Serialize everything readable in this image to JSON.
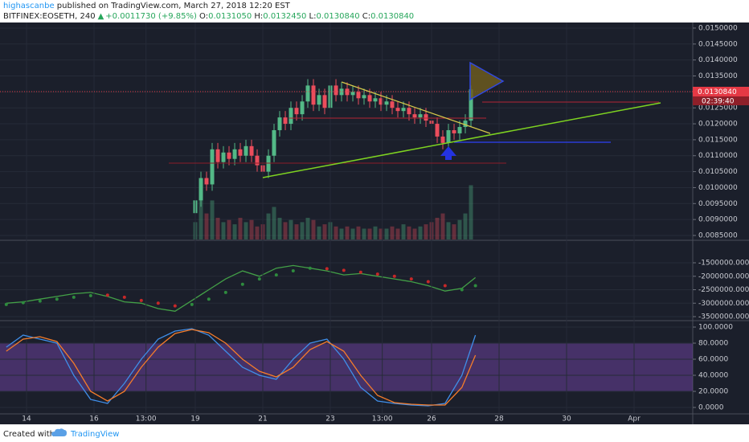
{
  "header": {
    "author": "highascanbe",
    "published": " published on TradingView.com, March 27, 2018 12:20 EST",
    "symbol": "BITFINEX:EOSETH, 240",
    "change": "+0.0011730 (+9.85%)",
    "open_label": " O:",
    "open": "0.0131050",
    "high_label": " H:",
    "high": "0.0132450",
    "low_label": " L:",
    "low": "0.0130840",
    "close_label": " C:",
    "close": "0.0130840"
  },
  "price_label": "0.0130840",
  "countdown": "02:39:40",
  "footer": {
    "created": "Created with",
    "brand": "TradingView"
  },
  "chart_data": [
    {
      "type": "candlestick",
      "up_color": "#53b987",
      "down_color": "#eb4d5c",
      "x": [
        19,
        19.167,
        19.333,
        19.5,
        19.667,
        19.833,
        20,
        20.167,
        20.333,
        20.5,
        20.667,
        20.833,
        21,
        21.167,
        21.333,
        21.5,
        21.667,
        21.833,
        22,
        22.167,
        22.333,
        22.5,
        22.667,
        22.833,
        23,
        23.167,
        23.333,
        23.5,
        23.667,
        23.833,
        24,
        24.167,
        24.333,
        24.5,
        24.667,
        24.833,
        25,
        25.167,
        25.333,
        25.5,
        25.667,
        25.833,
        26,
        26.167,
        26.333,
        26.5,
        26.667,
        26.833,
        27,
        27.167
      ],
      "open": [
        0.0092,
        0.0096,
        0.0103,
        0.0101,
        0.0112,
        0.0108,
        0.0111,
        0.0109,
        0.0112,
        0.011,
        0.0113,
        0.011,
        0.0107,
        0.0105,
        0.011,
        0.0118,
        0.0122,
        0.012,
        0.0125,
        0.0123,
        0.0127,
        0.0132,
        0.0126,
        0.0129,
        0.0125,
        0.0132,
        0.0129,
        0.0131,
        0.0129,
        0.013,
        0.0128,
        0.0129,
        0.0127,
        0.0128,
        0.0126,
        0.0127,
        0.0125,
        0.0124,
        0.0125,
        0.0123,
        0.0122,
        0.0123,
        0.0121,
        0.012,
        0.0116,
        0.0114,
        0.0118,
        0.0117,
        0.0119,
        0.0121
      ],
      "high": [
        0.0098,
        0.0105,
        0.0105,
        0.0114,
        0.0114,
        0.0113,
        0.0113,
        0.0114,
        0.0114,
        0.0115,
        0.0115,
        0.0112,
        0.0109,
        0.0112,
        0.012,
        0.0124,
        0.0124,
        0.0127,
        0.0127,
        0.0129,
        0.0134,
        0.0134,
        0.0131,
        0.0131,
        0.0134,
        0.0134,
        0.0133,
        0.0133,
        0.0132,
        0.0132,
        0.0131,
        0.0131,
        0.013,
        0.013,
        0.0129,
        0.0129,
        0.0127,
        0.0127,
        0.0127,
        0.0125,
        0.0125,
        0.0125,
        0.0123,
        0.0122,
        0.0118,
        0.012,
        0.012,
        0.0121,
        0.0123,
        0.0132
      ],
      "low": [
        0.009,
        0.0094,
        0.0099,
        0.0099,
        0.0106,
        0.0106,
        0.0107,
        0.0107,
        0.0108,
        0.0108,
        0.0108,
        0.0105,
        0.0103,
        0.0103,
        0.0108,
        0.0116,
        0.0118,
        0.0118,
        0.0121,
        0.0121,
        0.0125,
        0.0124,
        0.0124,
        0.0123,
        0.0123,
        0.0127,
        0.0127,
        0.0127,
        0.0127,
        0.0126,
        0.0126,
        0.0125,
        0.0125,
        0.0124,
        0.0124,
        0.0123,
        0.0122,
        0.0122,
        0.0121,
        0.012,
        0.012,
        0.0119,
        0.0118,
        0.0114,
        0.0112,
        0.0112,
        0.0115,
        0.0115,
        0.0117,
        0.0119
      ],
      "close": [
        0.0096,
        0.0103,
        0.0101,
        0.0112,
        0.0108,
        0.0111,
        0.0109,
        0.0112,
        0.011,
        0.0113,
        0.011,
        0.0107,
        0.0105,
        0.011,
        0.0118,
        0.0122,
        0.012,
        0.0125,
        0.0123,
        0.0127,
        0.0132,
        0.0126,
        0.0129,
        0.0125,
        0.0132,
        0.0129,
        0.0131,
        0.0129,
        0.013,
        0.0128,
        0.0129,
        0.0127,
        0.0128,
        0.0126,
        0.0127,
        0.0125,
        0.0124,
        0.0125,
        0.0123,
        0.0122,
        0.0123,
        0.0121,
        0.012,
        0.0116,
        0.0114,
        0.0118,
        0.0117,
        0.0119,
        0.0121,
        0.01308
      ],
      "xlim": [
        13.214,
        33.738
      ],
      "ylim": [
        0.008374,
        0.015175
      ],
      "yticks": [
        {
          "value": 0.0085,
          "label": "0.0085000"
        },
        {
          "value": 0.009,
          "label": "0.0090000"
        },
        {
          "value": 0.0095,
          "label": "0.0095000"
        },
        {
          "value": 0.01,
          "label": "0.0100000"
        },
        {
          "value": 0.0105,
          "label": "0.0105000"
        },
        {
          "value": 0.011,
          "label": "0.0110000"
        },
        {
          "value": 0.0115,
          "label": "0.0115000"
        },
        {
          "value": 0.012,
          "label": "0.0120000"
        },
        {
          "value": 0.0125,
          "label": "0.0125000"
        },
        {
          "value": 0.013,
          "label": "0.0130000"
        },
        {
          "value": 0.0135,
          "label": "0.0135000"
        },
        {
          "value": 0.014,
          "label": "0.0140000"
        },
        {
          "value": 0.0145,
          "label": "0.0145000"
        },
        {
          "value": 0.015,
          "label": "0.0150000"
        }
      ],
      "grid": true
    },
    {
      "type": "volume",
      "up_color": "#53b987",
      "down_color": "#eb4d5c",
      "x": [
        19,
        19.167,
        19.333,
        19.5,
        19.667,
        19.833,
        20,
        20.167,
        20.333,
        20.5,
        20.667,
        20.833,
        21,
        21.167,
        21.333,
        21.5,
        21.667,
        21.833,
        22,
        22.167,
        22.333,
        22.5,
        22.667,
        22.833,
        23,
        23.167,
        23.333,
        23.5,
        23.667,
        23.833,
        24,
        24.167,
        24.333,
        24.5,
        24.667,
        24.833,
        25,
        25.167,
        25.333,
        25.5,
        25.667,
        25.833,
        26,
        26.167,
        26.333,
        26.5,
        26.667,
        26.833,
        27,
        27.167
      ],
      "values": [
        8,
        22,
        12,
        18,
        10,
        8,
        9,
        7,
        10,
        8,
        9,
        6,
        7,
        12,
        15,
        10,
        8,
        9,
        7,
        8,
        10,
        9,
        6,
        7,
        8,
        6,
        5,
        6,
        5,
        6,
        5,
        5,
        6,
        5,
        5,
        6,
        5,
        7,
        6,
        5,
        6,
        7,
        8,
        10,
        12,
        8,
        7,
        9,
        12,
        25
      ],
      "xlim": [
        13.214,
        33.738
      ],
      "ylim": [
        0,
        100
      ]
    },
    {
      "type": "line",
      "up_color": "#2e8b3e",
      "down_color": "#c62828",
      "x": [
        13.4,
        13.9,
        14.4,
        14.9,
        15.4,
        15.9,
        16.4,
        16.9,
        17.4,
        17.9,
        18.4,
        18.9,
        19.4,
        19.9,
        20.4,
        20.9,
        21.4,
        21.9,
        22.4,
        22.9,
        23.4,
        23.9,
        24.4,
        24.9,
        25.4,
        25.9,
        26.4,
        26.9,
        27.3
      ],
      "series": [
        {
          "color": "#43a047",
          "values": [
            -3000000,
            -2950000,
            -2850000,
            -2750000,
            -2650000,
            -2600000,
            -2750000,
            -2950000,
            -3000000,
            -3200000,
            -3300000,
            -2900000,
            -2500000,
            -2100000,
            -1800000,
            -2000000,
            -1700000,
            -1600000,
            -1700000,
            -1800000,
            -1950000,
            -1900000,
            -2000000,
            -2100000,
            -2200000,
            -2350000,
            -2550000,
            -2450000,
            -2050000
          ]
        },
        {
          "color": "#2e8b3e",
          "style": "dots",
          "values": [
            -3050000,
            -2980000,
            -2920000,
            -2850000,
            -2780000,
            -2720000,
            -2700000,
            -2780000,
            -2900000,
            -3000000,
            -3100000,
            -3050000,
            -2850000,
            -2600000,
            -2300000,
            -2100000,
            -1950000,
            -1800000,
            -1700000,
            -1720000,
            -1780000,
            -1850000,
            -1920000,
            -2000000,
            -2100000,
            -2200000,
            -2350000,
            -2500000,
            -2350000
          ]
        }
      ],
      "xlim": [
        13.214,
        33.738
      ],
      "ylim": [
        -3619000,
        -694000
      ],
      "yticks": [
        {
          "value": -1500000,
          "label": "-1500000.0000"
        },
        {
          "value": -2000000,
          "label": "-2000000.0000"
        },
        {
          "value": -2500000,
          "label": "-2500000.0000"
        },
        {
          "value": -3000000,
          "label": "-3000000.0000"
        },
        {
          "value": -3500000,
          "label": "-3500000.0000"
        }
      ],
      "grid": true
    },
    {
      "type": "line",
      "x": [
        13.4,
        13.9,
        14.4,
        14.9,
        15.4,
        15.9,
        16.4,
        16.9,
        17.4,
        17.9,
        18.4,
        18.9,
        19.4,
        19.9,
        20.4,
        20.9,
        21.4,
        21.9,
        22.4,
        22.9,
        23.4,
        23.9,
        24.4,
        24.9,
        25.4,
        25.9,
        26.4,
        26.9,
        27.3
      ],
      "series": [
        {
          "color": "#3f8ee8",
          "values": [
            75,
            90,
            85,
            80,
            40,
            10,
            5,
            30,
            60,
            85,
            95,
            98,
            90,
            70,
            50,
            40,
            35,
            60,
            80,
            85,
            60,
            25,
            8,
            5,
            3,
            2,
            5,
            40,
            90
          ]
        },
        {
          "color": "#f57c2a",
          "values": [
            70,
            85,
            88,
            82,
            55,
            20,
            8,
            20,
            50,
            75,
            92,
            97,
            93,
            80,
            60,
            45,
            38,
            50,
            72,
            82,
            70,
            40,
            15,
            6,
            4,
            3,
            3,
            25,
            65
          ]
        }
      ],
      "band": [
        20,
        80
      ],
      "band_color": "#6a3f9a",
      "xlim": [
        13.214,
        33.738
      ],
      "ylim": [
        -7,
        107
      ],
      "yticks": [
        {
          "value": 0,
          "label": "0.0000"
        },
        {
          "value": 20,
          "label": "20.0000"
        },
        {
          "value": 40,
          "label": "40.0000"
        },
        {
          "value": 60,
          "label": "60.0000"
        },
        {
          "value": 80,
          "label": "80.0000"
        },
        {
          "value": 100,
          "label": "100.0000"
        }
      ],
      "xticks": [
        14,
        16,
        {
          "value": 17.54,
          "label": "13:00"
        },
        19,
        21,
        23,
        {
          "value": 24.54,
          "label": "13:00"
        },
        26,
        28,
        30,
        {
          "value": 32,
          "label": "Apr"
        }
      ],
      "grid": true
    }
  ]
}
